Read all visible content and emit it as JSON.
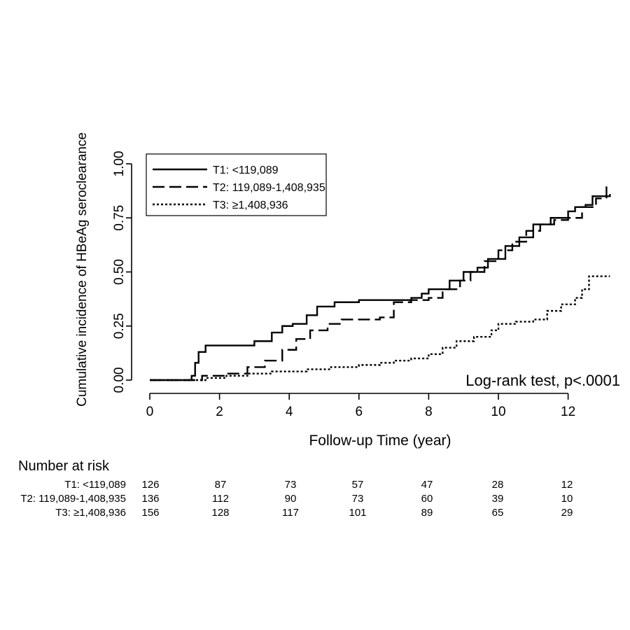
{
  "chart_data": {
    "type": "line",
    "xlabel": "Follow-up Time (year)",
    "ylabel": "Cumulative incidence of HBeAg seroclearance",
    "xlim": [
      0,
      13.4
    ],
    "ylim": [
      0,
      1.0
    ],
    "x_ticks": [
      "0",
      "2",
      "4",
      "6",
      "8",
      "10",
      "12"
    ],
    "y_ticks": [
      "0.00",
      "0.25",
      "0.50",
      "0.75",
      "1.00"
    ],
    "grid": false,
    "legend_position": "top-left",
    "annotation": "Log-rank test, p<.0001",
    "series": [
      {
        "name": "T1: <119,089",
        "style": "solid",
        "points": [
          [
            0,
            0
          ],
          [
            1.0,
            0
          ],
          [
            1.2,
            0.02
          ],
          [
            1.3,
            0.08
          ],
          [
            1.4,
            0.13
          ],
          [
            1.6,
            0.16
          ],
          [
            2.5,
            0.16
          ],
          [
            3.0,
            0.18
          ],
          [
            3.5,
            0.22
          ],
          [
            3.8,
            0.25
          ],
          [
            4.1,
            0.26
          ],
          [
            4.5,
            0.3
          ],
          [
            4.8,
            0.34
          ],
          [
            5.3,
            0.36
          ],
          [
            6.0,
            0.37
          ],
          [
            7.5,
            0.38
          ],
          [
            7.8,
            0.4
          ],
          [
            8.0,
            0.42
          ],
          [
            8.6,
            0.46
          ],
          [
            9.0,
            0.5
          ],
          [
            9.4,
            0.52
          ],
          [
            9.7,
            0.56
          ],
          [
            10.2,
            0.62
          ],
          [
            10.6,
            0.66
          ],
          [
            11.0,
            0.72
          ],
          [
            11.5,
            0.75
          ],
          [
            12.0,
            0.78
          ],
          [
            12.2,
            0.8
          ],
          [
            12.5,
            0.81
          ],
          [
            12.7,
            0.85
          ],
          [
            13.2,
            0.86
          ]
        ]
      },
      {
        "name": "T2: 119,089-1,408,935",
        "style": "long-dash",
        "points": [
          [
            0,
            0
          ],
          [
            1.0,
            0
          ],
          [
            1.5,
            0.02
          ],
          [
            2.2,
            0.03
          ],
          [
            2.8,
            0.06
          ],
          [
            3.3,
            0.09
          ],
          [
            3.8,
            0.14
          ],
          [
            4.2,
            0.19
          ],
          [
            4.6,
            0.23
          ],
          [
            5.1,
            0.26
          ],
          [
            5.5,
            0.28
          ],
          [
            6.3,
            0.28
          ],
          [
            6.6,
            0.29
          ],
          [
            7.0,
            0.36
          ],
          [
            7.5,
            0.37
          ],
          [
            8.0,
            0.38
          ],
          [
            8.4,
            0.42
          ],
          [
            8.9,
            0.46
          ],
          [
            9.2,
            0.5
          ],
          [
            9.6,
            0.55
          ],
          [
            10.0,
            0.6
          ],
          [
            10.4,
            0.64
          ],
          [
            10.8,
            0.69
          ],
          [
            11.2,
            0.72
          ],
          [
            11.6,
            0.74
          ],
          [
            12.0,
            0.75
          ],
          [
            12.4,
            0.8
          ],
          [
            12.8,
            0.84
          ],
          [
            13.1,
            0.9
          ]
        ]
      },
      {
        "name": "T3: ≥1,408,936",
        "style": "dotted",
        "points": [
          [
            0,
            0
          ],
          [
            1.1,
            0
          ],
          [
            1.6,
            0.01
          ],
          [
            2.2,
            0.02
          ],
          [
            2.8,
            0.03
          ],
          [
            3.5,
            0.04
          ],
          [
            4.5,
            0.05
          ],
          [
            5.2,
            0.06
          ],
          [
            6.0,
            0.07
          ],
          [
            6.6,
            0.08
          ],
          [
            7.0,
            0.09
          ],
          [
            7.5,
            0.1
          ],
          [
            8.0,
            0.12
          ],
          [
            8.4,
            0.15
          ],
          [
            8.8,
            0.18
          ],
          [
            9.3,
            0.2
          ],
          [
            9.8,
            0.23
          ],
          [
            10.0,
            0.26
          ],
          [
            10.5,
            0.27
          ],
          [
            11.0,
            0.28
          ],
          [
            11.4,
            0.32
          ],
          [
            11.8,
            0.35
          ],
          [
            12.2,
            0.38
          ],
          [
            12.4,
            0.42
          ],
          [
            12.6,
            0.48
          ],
          [
            13.2,
            0.48
          ]
        ]
      }
    ]
  },
  "risk_table": {
    "title": "Number at risk",
    "times": [
      0,
      2,
      4,
      6,
      8,
      10,
      12
    ],
    "rows": [
      {
        "label": "T1: <119,089",
        "values": [
          "126",
          "87",
          "73",
          "57",
          "47",
          "28",
          "12"
        ]
      },
      {
        "label": "T2: 119,089-1,408,935",
        "values": [
          "136",
          "112",
          "90",
          "73",
          "60",
          "39",
          "10"
        ]
      },
      {
        "label": "T3: ≥1,408,936",
        "values": [
          "156",
          "128",
          "117",
          "101",
          "89",
          "65",
          "29"
        ]
      }
    ]
  }
}
